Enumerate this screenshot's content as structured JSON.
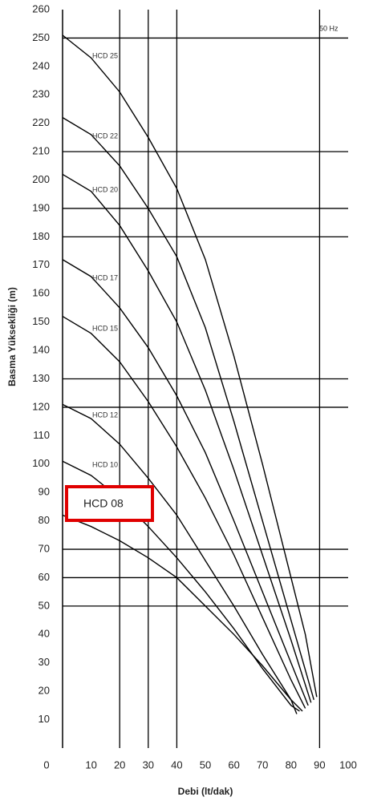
{
  "chart_data": {
    "type": "line",
    "x_label": "Debi (lt/dak)",
    "y_label": "Basma Yüksekliği (m)",
    "annotation": "50 Hz",
    "xlim": [
      0,
      100
    ],
    "xticks": [
      0,
      10,
      20,
      30,
      40,
      50,
      60,
      70,
      80,
      90,
      100
    ],
    "ylim": [
      0,
      260
    ],
    "yticks": [
      10,
      20,
      30,
      40,
      50,
      60,
      70,
      80,
      90,
      100,
      110,
      120,
      130,
      140,
      150,
      160,
      170,
      180,
      190,
      200,
      210,
      220,
      230,
      240,
      250,
      260
    ],
    "x_grid": [
      20,
      30,
      40,
      90
    ],
    "y_grid": [
      50,
      60,
      70,
      120,
      130,
      180,
      190,
      210,
      250
    ],
    "color": "#000000",
    "series": [
      {
        "name": "HCD 25",
        "x": [
          0,
          10,
          20,
          30,
          40,
          50,
          60,
          70,
          80,
          85,
          89
        ],
        "values": [
          251,
          243,
          231,
          215,
          197,
          172,
          138,
          100,
          60,
          40,
          18
        ]
      },
      {
        "name": "HCD 22",
        "x": [
          0,
          10,
          20,
          30,
          40,
          50,
          60,
          70,
          80,
          88
        ],
        "values": [
          222,
          216,
          205,
          190,
          173,
          148,
          115,
          80,
          45,
          17
        ]
      },
      {
        "name": "HCD 20",
        "x": [
          0,
          10,
          20,
          30,
          40,
          50,
          60,
          70,
          80,
          87
        ],
        "values": [
          202,
          196,
          184,
          168,
          150,
          126,
          98,
          68,
          38,
          16
        ]
      },
      {
        "name": "HCD 17",
        "x": [
          0,
          10,
          20,
          30,
          40,
          50,
          60,
          70,
          80,
          86
        ],
        "values": [
          172,
          166,
          155,
          141,
          124,
          104,
          80,
          55,
          30,
          15
        ]
      },
      {
        "name": "HCD 15",
        "x": [
          0,
          10,
          20,
          30,
          40,
          50,
          60,
          70,
          80,
          85
        ],
        "values": [
          152,
          146,
          136,
          122,
          106,
          88,
          68,
          46,
          24,
          14
        ]
      },
      {
        "name": "HCD 12",
        "x": [
          0,
          10,
          20,
          30,
          40,
          50,
          60,
          70,
          80,
          84
        ],
        "values": [
          121,
          116,
          107,
          95,
          82,
          66,
          50,
          33,
          17,
          13
        ]
      },
      {
        "name": "HCD 10",
        "x": [
          0,
          10,
          20,
          30,
          40,
          50,
          60,
          70,
          80,
          83
        ],
        "values": [
          101,
          96,
          88,
          78,
          67,
          55,
          42,
          28,
          15,
          13
        ]
      },
      {
        "name": "HCD 08",
        "x": [
          0,
          10,
          20,
          30,
          40,
          50,
          60,
          70,
          80,
          82
        ],
        "values": [
          82,
          78,
          73,
          67,
          60,
          50,
          40,
          29,
          17,
          12
        ]
      }
    ]
  }
}
